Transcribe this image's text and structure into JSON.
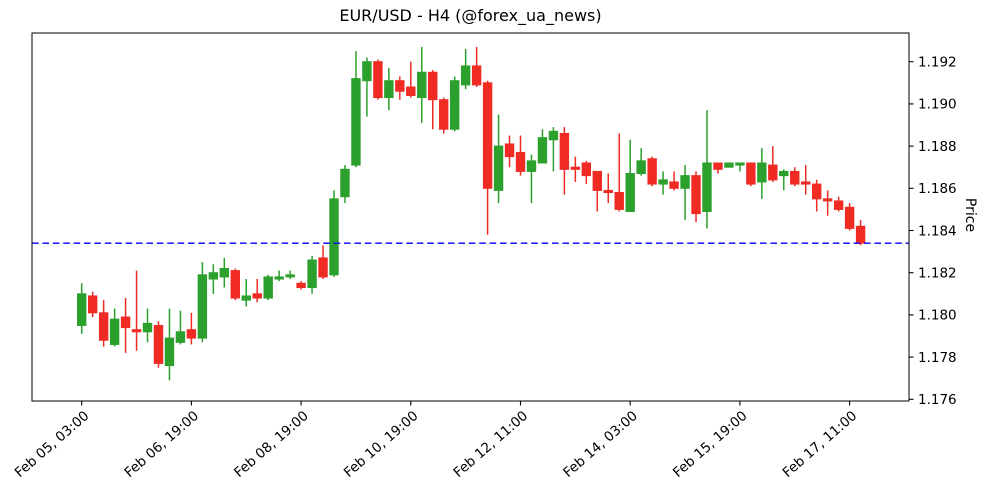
{
  "title": "EUR/USD - H4 (@forex_ua_news)",
  "chart_data": {
    "type": "candlestick",
    "title": "EUR/USD - H4 (@forex_ua_news)",
    "ylabel": "Price",
    "ylim": [
      1.17592,
      1.19336
    ],
    "grid": false,
    "y_ticks": [
      1.176,
      1.178,
      1.18,
      1.182,
      1.184,
      1.186,
      1.188,
      1.19,
      1.192
    ],
    "y_tick_labels": [
      "1.176",
      "1.178",
      "1.180",
      "1.182",
      "1.184",
      "1.186",
      "1.188",
      "1.190",
      "1.192"
    ],
    "x_tick_indices": [
      0,
      10,
      20,
      30,
      40,
      50,
      60,
      70
    ],
    "x_tick_labels": [
      "Feb 05, 03:00",
      "Feb 06, 19:00",
      "Feb 08, 19:00",
      "Feb 10, 19:00",
      "Feb 12, 11:00",
      "Feb 14, 03:00",
      "Feb 15, 19:00",
      "Feb 17, 11:00"
    ],
    "hline": {
      "value": 1.1834,
      "color": "#0000ff",
      "style": "dashed"
    },
    "colors": {
      "up": "#2ca02c",
      "down": "#ef2b24",
      "axis": "#000000"
    },
    "candles_format": [
      "open",
      "high",
      "low",
      "close"
    ],
    "candles": [
      [
        1.1795,
        1.1815,
        1.1791,
        1.181
      ],
      [
        1.1809,
        1.1811,
        1.1799,
        1.1801
      ],
      [
        1.1801,
        1.1807,
        1.1785,
        1.1788
      ],
      [
        1.1786,
        1.1803,
        1.1785,
        1.1798
      ],
      [
        1.1799,
        1.1808,
        1.1782,
        1.1794
      ],
      [
        1.1793,
        1.1821,
        1.1783,
        1.1792
      ],
      [
        1.1792,
        1.1803,
        1.1787,
        1.1796
      ],
      [
        1.1795,
        1.1797,
        1.1775,
        1.1777
      ],
      [
        1.1776,
        1.1803,
        1.1769,
        1.1789
      ],
      [
        1.1787,
        1.1802,
        1.1786,
        1.1792
      ],
      [
        1.1793,
        1.1801,
        1.1786,
        1.1789
      ],
      [
        1.1789,
        1.1825,
        1.1787,
        1.1819
      ],
      [
        1.1817,
        1.1824,
        1.181,
        1.182
      ],
      [
        1.1818,
        1.1827,
        1.1813,
        1.1822
      ],
      [
        1.1821,
        1.1822,
        1.1807,
        1.1808
      ],
      [
        1.1807,
        1.1817,
        1.1804,
        1.1809
      ],
      [
        1.181,
        1.1817,
        1.1806,
        1.1808
      ],
      [
        1.1808,
        1.1819,
        1.1807,
        1.1818
      ],
      [
        1.1817,
        1.1821,
        1.1816,
        1.1818
      ],
      [
        1.1818,
        1.1821,
        1.1817,
        1.1819
      ],
      [
        1.1815,
        1.1816,
        1.1812,
        1.1813
      ],
      [
        1.1813,
        1.1828,
        1.181,
        1.1826
      ],
      [
        1.1827,
        1.1833,
        1.1817,
        1.1818
      ],
      [
        1.1819,
        1.1859,
        1.1818,
        1.1855
      ],
      [
        1.1856,
        1.1871,
        1.1853,
        1.1869
      ],
      [
        1.1871,
        1.1925,
        1.187,
        1.1912
      ],
      [
        1.1911,
        1.1922,
        1.1894,
        1.192
      ],
      [
        1.192,
        1.1921,
        1.1902,
        1.1903
      ],
      [
        1.1903,
        1.1917,
        1.1897,
        1.1911
      ],
      [
        1.1911,
        1.1913,
        1.1902,
        1.1906
      ],
      [
        1.1908,
        1.192,
        1.1903,
        1.1904
      ],
      [
        1.1903,
        1.1927,
        1.1891,
        1.1915
      ],
      [
        1.1915,
        1.1916,
        1.1888,
        1.1902
      ],
      [
        1.1902,
        1.1903,
        1.1886,
        1.1888
      ],
      [
        1.1888,
        1.1913,
        1.1887,
        1.1911
      ],
      [
        1.1909,
        1.1926,
        1.1907,
        1.1918
      ],
      [
        1.1918,
        1.1927,
        1.1908,
        1.1909
      ],
      [
        1.191,
        1.1911,
        1.1838,
        1.186
      ],
      [
        1.1859,
        1.1895,
        1.1853,
        1.188
      ],
      [
        1.1881,
        1.1885,
        1.187,
        1.1875
      ],
      [
        1.1877,
        1.1885,
        1.1866,
        1.1868
      ],
      [
        1.1868,
        1.1876,
        1.1853,
        1.1873
      ],
      [
        1.1872,
        1.1888,
        1.1872,
        1.1884
      ],
      [
        1.1883,
        1.1889,
        1.1868,
        1.1887
      ],
      [
        1.1886,
        1.1889,
        1.1857,
        1.1869
      ],
      [
        1.187,
        1.1875,
        1.1863,
        1.1869
      ],
      [
        1.1872,
        1.1873,
        1.1862,
        1.1866
      ],
      [
        1.1868,
        1.1868,
        1.1849,
        1.1859
      ],
      [
        1.1859,
        1.1867,
        1.1853,
        1.1858
      ],
      [
        1.1858,
        1.1886,
        1.1849,
        1.185
      ],
      [
        1.1849,
        1.1883,
        1.1849,
        1.1867
      ],
      [
        1.1867,
        1.1879,
        1.1866,
        1.1873
      ],
      [
        1.1874,
        1.1875,
        1.1861,
        1.1862
      ],
      [
        1.1862,
        1.1868,
        1.1857,
        1.1864
      ],
      [
        1.1863,
        1.1868,
        1.1859,
        1.186
      ],
      [
        1.186,
        1.1871,
        1.1845,
        1.1866
      ],
      [
        1.1866,
        1.1868,
        1.1844,
        1.1848
      ],
      [
        1.1849,
        1.1897,
        1.1841,
        1.1872
      ],
      [
        1.1872,
        1.1872,
        1.1867,
        1.1869
      ],
      [
        1.187,
        1.1872,
        1.187,
        1.1872
      ],
      [
        1.1871,
        1.1872,
        1.1868,
        1.1872
      ],
      [
        1.1872,
        1.1872,
        1.1861,
        1.1862
      ],
      [
        1.1863,
        1.1879,
        1.1855,
        1.1872
      ],
      [
        1.1871,
        1.188,
        1.1863,
        1.1864
      ],
      [
        1.1866,
        1.1869,
        1.1859,
        1.1868
      ],
      [
        1.1868,
        1.187,
        1.1861,
        1.1862
      ],
      [
        1.1863,
        1.1871,
        1.1857,
        1.1862
      ],
      [
        1.1862,
        1.1864,
        1.1849,
        1.1855
      ],
      [
        1.1855,
        1.1859,
        1.1847,
        1.1854
      ],
      [
        1.1854,
        1.1856,
        1.1849,
        1.185
      ],
      [
        1.1851,
        1.1853,
        1.184,
        1.1841
      ],
      [
        1.1842,
        1.1845,
        1.1833,
        1.1834
      ]
    ]
  }
}
